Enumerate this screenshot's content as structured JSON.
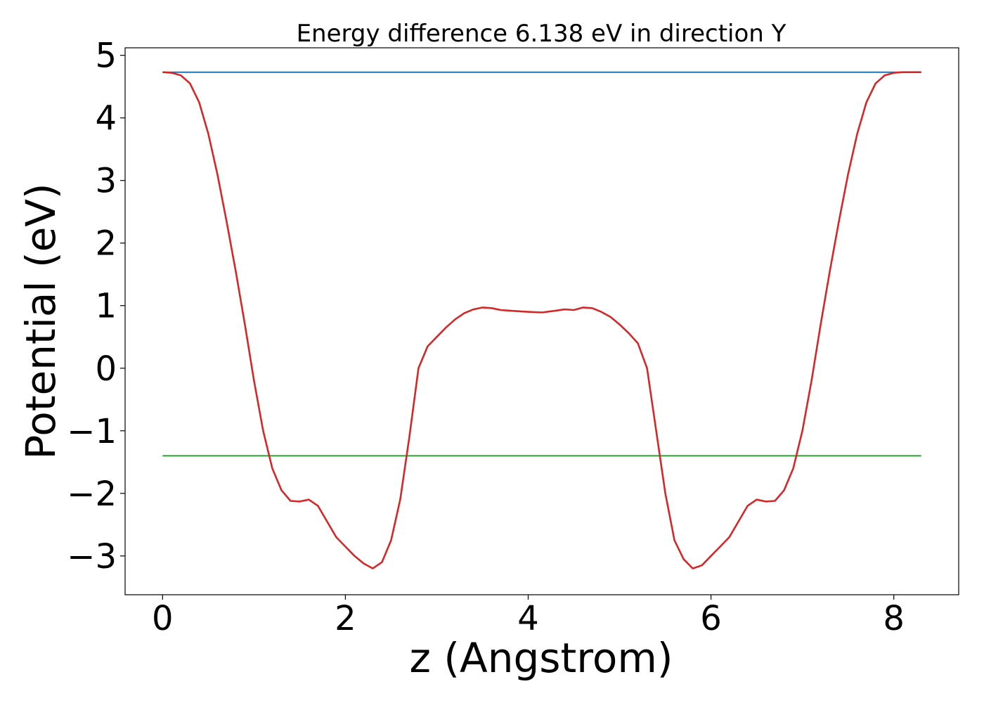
{
  "chart_data": {
    "type": "line",
    "title": "Energy difference 6.138 eV in direction Y",
    "xlabel": "z (Angstrom)",
    "ylabel": "Potential (eV)",
    "xlim": [
      -0.41,
      8.71
    ],
    "ylim": [
      -3.62,
      5.12
    ],
    "xticks": [
      0,
      2,
      4,
      6,
      8
    ],
    "xtick_labels": [
      "0",
      "2",
      "4",
      "6",
      "8"
    ],
    "yticks": [
      -3,
      -2,
      -1,
      0,
      1,
      2,
      3,
      4,
      5
    ],
    "ytick_labels": [
      "−3",
      "−2",
      "−1",
      "0",
      "1",
      "2",
      "3",
      "4",
      "5"
    ],
    "grid": false,
    "legend": "none",
    "series": [
      {
        "color": "#1f77b4",
        "x": [
          0,
          8.3
        ],
        "y": [
          4.73,
          4.73
        ]
      },
      {
        "color": "#2ca02c",
        "x": [
          0,
          8.3
        ],
        "y": [
          -1.4,
          -1.4
        ]
      },
      {
        "color": "#d62728",
        "x": [
          0,
          0.1,
          0.2,
          0.3,
          0.4,
          0.5,
          0.6,
          0.7,
          0.8,
          0.9,
          1.0,
          1.1,
          1.2,
          1.3,
          1.4,
          1.5,
          1.6,
          1.7,
          1.8,
          1.9,
          2.0,
          2.1,
          2.2,
          2.3,
          2.4,
          2.5,
          2.6,
          2.7,
          2.8,
          2.9,
          3.0,
          3.1,
          3.2,
          3.3,
          3.4,
          3.5,
          3.6,
          3.7,
          3.8,
          3.9,
          4.0,
          4.15,
          4.3,
          4.4,
          4.5,
          4.6,
          4.7,
          4.8,
          4.9,
          5.0,
          5.1,
          5.2,
          5.3,
          5.4,
          5.5,
          5.6,
          5.7,
          5.8,
          5.9,
          6.0,
          6.1,
          6.2,
          6.3,
          6.4,
          6.5,
          6.6,
          6.7,
          6.8,
          6.9,
          7.0,
          7.1,
          7.2,
          7.3,
          7.4,
          7.5,
          7.6,
          7.7,
          7.8,
          7.9,
          8.0,
          8.1,
          8.2,
          8.3
        ],
        "y": [
          4.73,
          4.72,
          4.68,
          4.55,
          4.25,
          3.75,
          3.1,
          2.35,
          1.55,
          0.7,
          -0.2,
          -1.0,
          -1.6,
          -1.95,
          -2.12,
          -2.13,
          -2.1,
          -2.2,
          -2.45,
          -2.7,
          -2.85,
          -3.0,
          -3.12,
          -3.2,
          -3.1,
          -2.75,
          -2.1,
          -1.1,
          0.0,
          0.35,
          0.5,
          0.65,
          0.78,
          0.88,
          0.94,
          0.97,
          0.96,
          0.93,
          0.92,
          0.91,
          0.9,
          0.89,
          0.92,
          0.94,
          0.93,
          0.97,
          0.96,
          0.9,
          0.82,
          0.7,
          0.56,
          0.4,
          0.0,
          -1.0,
          -2.0,
          -2.75,
          -3.05,
          -3.2,
          -3.15,
          -3.0,
          -2.85,
          -2.7,
          -2.45,
          -2.2,
          -2.1,
          -2.13,
          -2.12,
          -1.95,
          -1.6,
          -1.0,
          -0.2,
          0.7,
          1.55,
          2.35,
          3.1,
          3.75,
          4.25,
          4.55,
          4.68,
          4.72,
          4.73,
          4.73,
          4.73
        ]
      }
    ]
  }
}
